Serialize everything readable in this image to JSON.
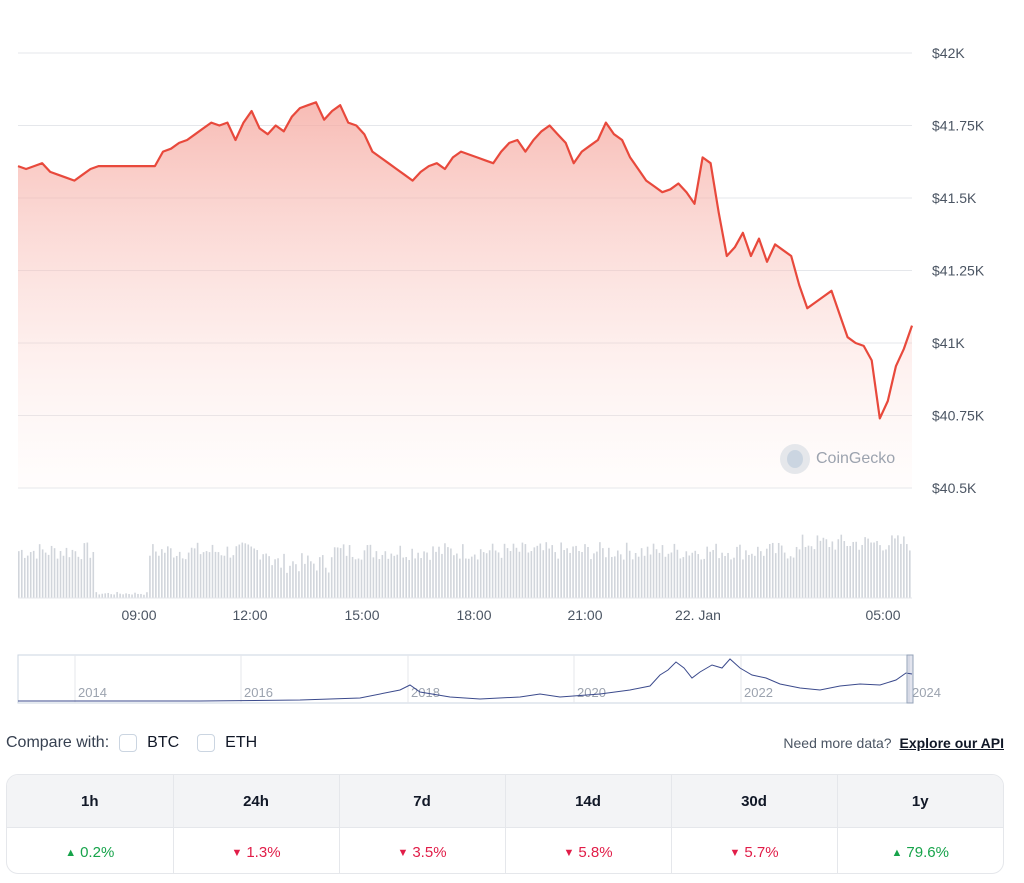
{
  "chart_data": {
    "type": "line",
    "ylim": [
      40500,
      42000
    ],
    "yticks": [
      "$42K",
      "$41.75K",
      "$41.5K",
      "$41.25K",
      "$41K",
      "$40.75K",
      "$40.5K"
    ],
    "ytick_values": [
      42000,
      41750,
      41500,
      41250,
      41000,
      40750,
      40500
    ],
    "xticks": [
      "09:00",
      "12:00",
      "15:00",
      "18:00",
      "21:00",
      "22. Jan",
      "05:00"
    ],
    "series": [
      {
        "values": [
          41610,
          41600,
          41610,
          41620,
          41590,
          41580,
          41570,
          41560,
          41580,
          41600,
          41610,
          41610,
          41610,
          41610,
          41610,
          41610,
          41610,
          41610,
          41660,
          41670,
          41690,
          41700,
          41720,
          41740,
          41760,
          41750,
          41760,
          41700,
          41760,
          41800,
          41740,
          41720,
          41750,
          41730,
          41780,
          41810,
          41820,
          41830,
          41770,
          41800,
          41820,
          41760,
          41750,
          41720,
          41660,
          41640,
          41620,
          41600,
          41580,
          41560,
          41590,
          41610,
          41620,
          41600,
          41640,
          41660,
          41650,
          41640,
          41630,
          41620,
          41660,
          41690,
          41700,
          41660,
          41700,
          41730,
          41750,
          41720,
          41690,
          41620,
          41660,
          41680,
          41700,
          41760,
          41720,
          41700,
          41640,
          41600,
          41560,
          41540,
          41520,
          41530,
          41550,
          41520,
          41480,
          41640,
          41620,
          41450,
          41300,
          41330,
          41380,
          41300,
          41360,
          41280,
          41340,
          41320,
          41300,
          41200,
          41120,
          41140,
          41160,
          41180,
          41100,
          41020,
          41000,
          40990,
          40940,
          40740,
          40800,
          40920,
          40980,
          41060
        ]
      }
    ]
  },
  "navigator": {
    "labels": [
      "2014",
      "2016",
      "2018",
      "2020",
      "2022",
      "2024"
    ]
  },
  "watermark": "CoinGecko",
  "compare": {
    "label": "Compare with:",
    "options": [
      "BTC",
      "ETH"
    ]
  },
  "api": {
    "prompt": "Need more data?",
    "link": "Explore our API"
  },
  "performance": [
    {
      "period": "1h",
      "change": "0.2%",
      "direction": "up"
    },
    {
      "period": "24h",
      "change": "1.3%",
      "direction": "down"
    },
    {
      "period": "7d",
      "change": "3.5%",
      "direction": "down"
    },
    {
      "period": "14d",
      "change": "5.8%",
      "direction": "down"
    },
    {
      "period": "30d",
      "change": "5.7%",
      "direction": "down"
    },
    {
      "period": "1y",
      "change": "79.6%",
      "direction": "up"
    }
  ],
  "colors": {
    "line": "#e8493c",
    "up": "#16a34a",
    "down": "#e11d48",
    "navigator_line": "#3b4a8c"
  }
}
